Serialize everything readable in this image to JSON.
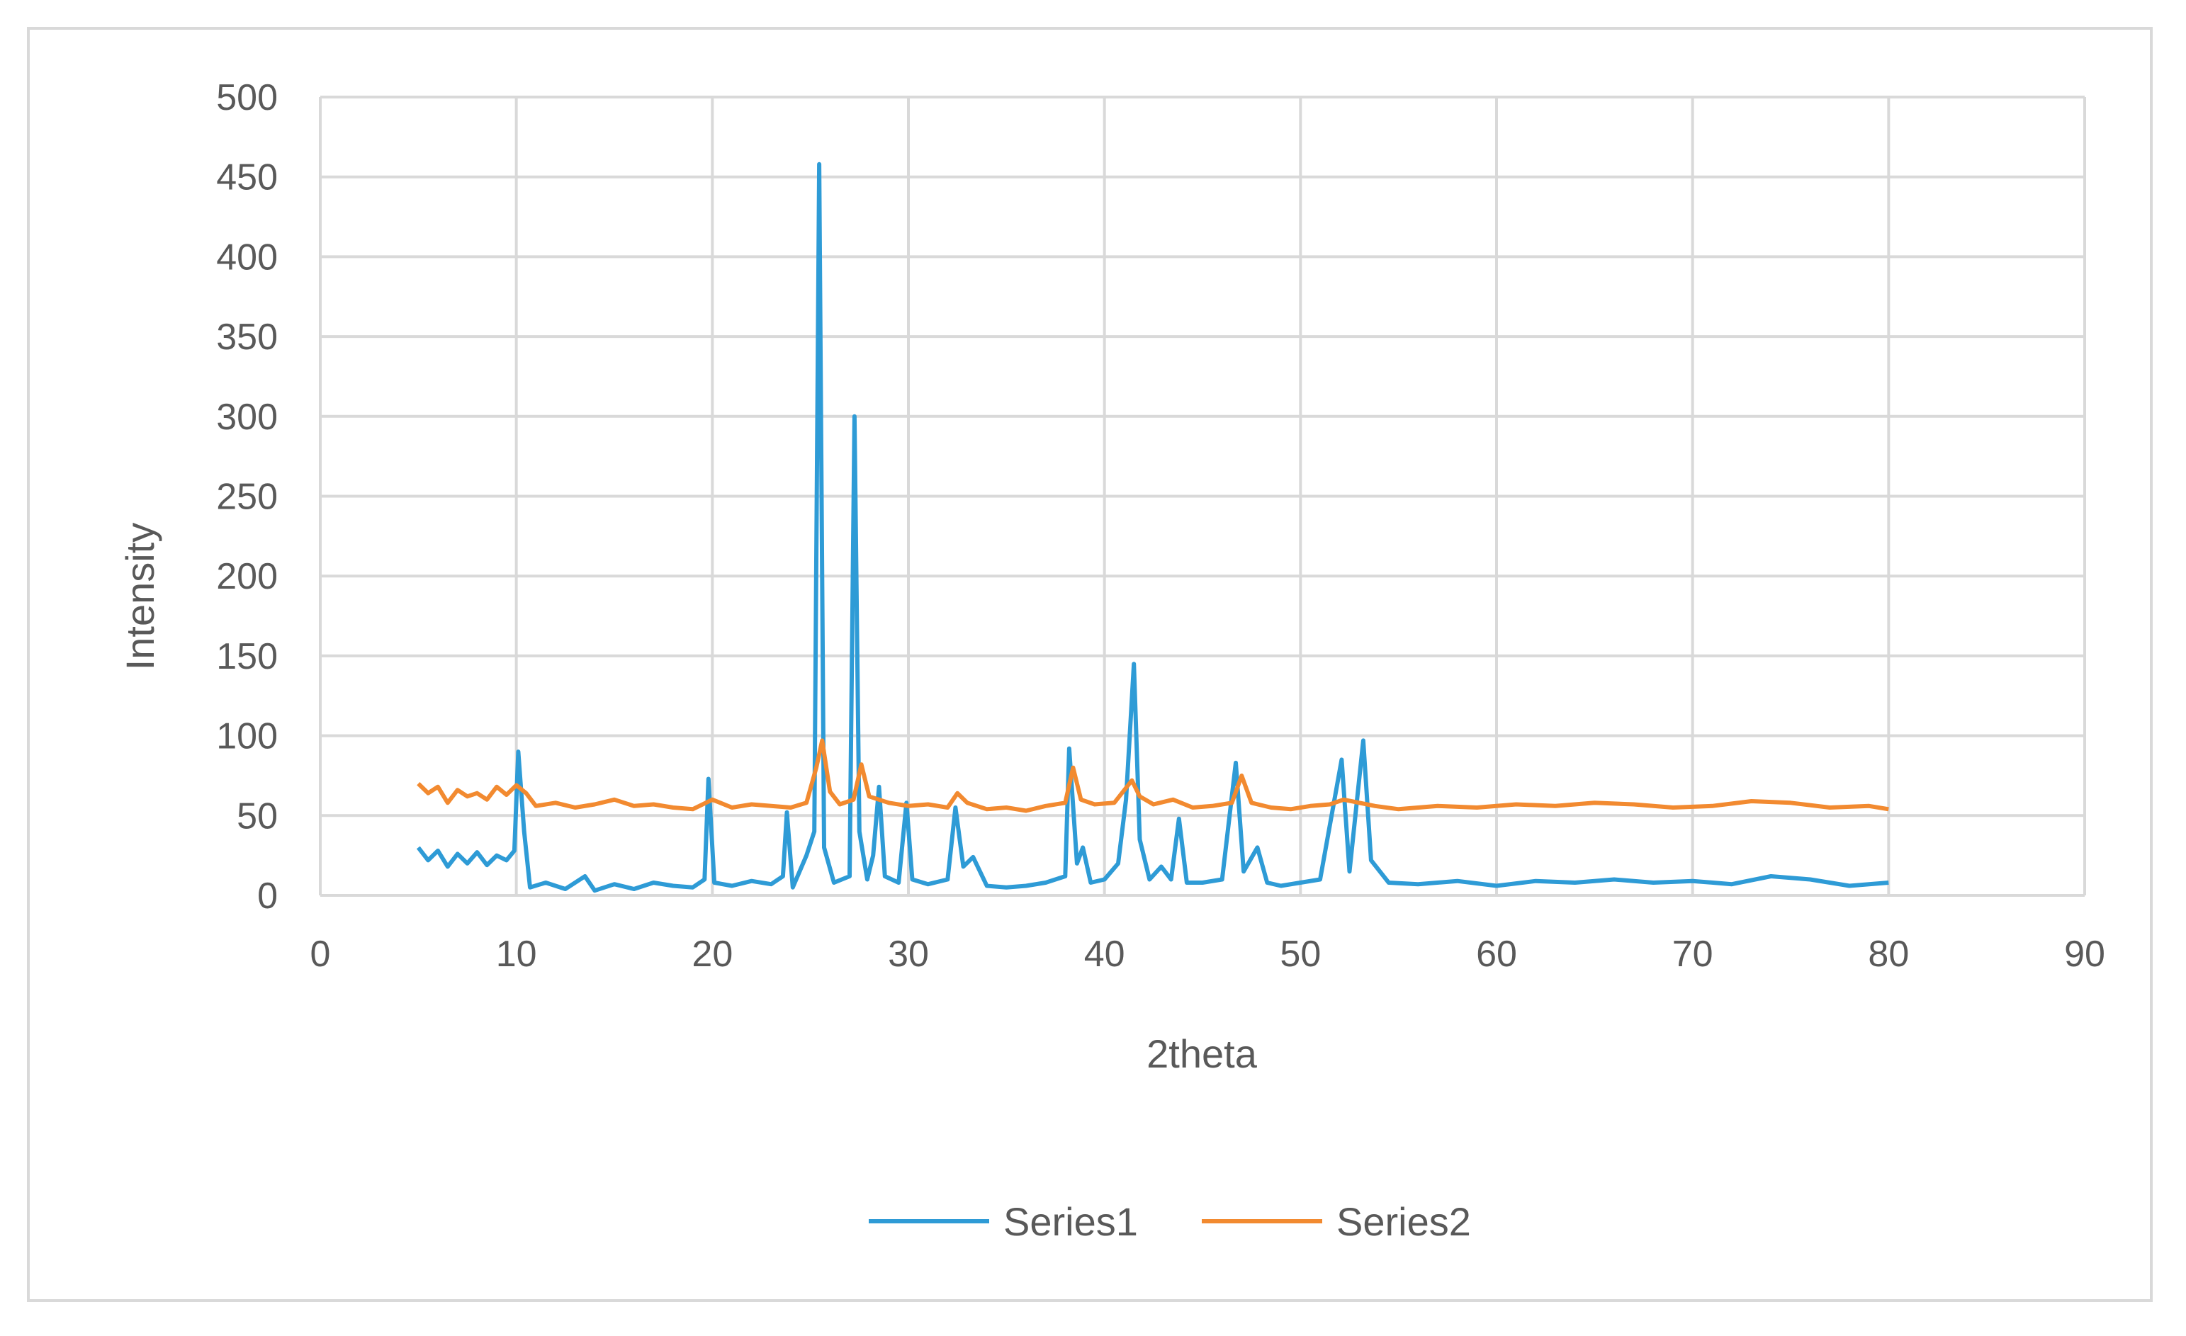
{
  "chart_data": {
    "type": "line",
    "title": "",
    "xlabel": "2theta",
    "ylabel": "Intensity",
    "xlim": [
      0,
      90
    ],
    "ylim": [
      0,
      500
    ],
    "x_ticks": [
      0,
      10,
      20,
      30,
      40,
      50,
      60,
      70,
      80,
      90
    ],
    "y_ticks": [
      0,
      50,
      100,
      150,
      200,
      250,
      300,
      350,
      400,
      450,
      500
    ],
    "grid": true,
    "legend_position": "bottom",
    "series": [
      {
        "name": "Series1",
        "color": "#2E9BD6",
        "points": [
          [
            5,
            30
          ],
          [
            5.5,
            22
          ],
          [
            6,
            28
          ],
          [
            6.5,
            18
          ],
          [
            7,
            26
          ],
          [
            7.5,
            20
          ],
          [
            8,
            27
          ],
          [
            8.5,
            19
          ],
          [
            9,
            25
          ],
          [
            9.5,
            22
          ],
          [
            9.9,
            28
          ],
          [
            10.1,
            90
          ],
          [
            10.4,
            40
          ],
          [
            10.7,
            5
          ],
          [
            11.5,
            8
          ],
          [
            12.5,
            4
          ],
          [
            13.5,
            12
          ],
          [
            14,
            3
          ],
          [
            15,
            7
          ],
          [
            16,
            4
          ],
          [
            17,
            8
          ],
          [
            18,
            6
          ],
          [
            19,
            5
          ],
          [
            19.6,
            10
          ],
          [
            19.8,
            73
          ],
          [
            20.1,
            8
          ],
          [
            21,
            6
          ],
          [
            22,
            9
          ],
          [
            23,
            7
          ],
          [
            23.6,
            12
          ],
          [
            23.8,
            52
          ],
          [
            24.1,
            5
          ],
          [
            24.8,
            25
          ],
          [
            25.2,
            40
          ],
          [
            25.45,
            458
          ],
          [
            25.7,
            30
          ],
          [
            26.2,
            8
          ],
          [
            27,
            12
          ],
          [
            27.25,
            300
          ],
          [
            27.5,
            40
          ],
          [
            27.9,
            10
          ],
          [
            28.2,
            25
          ],
          [
            28.5,
            68
          ],
          [
            28.8,
            12
          ],
          [
            29.5,
            8
          ],
          [
            29.9,
            58
          ],
          [
            30.2,
            10
          ],
          [
            31,
            7
          ],
          [
            32,
            10
          ],
          [
            32.4,
            55
          ],
          [
            32.8,
            18
          ],
          [
            33.3,
            24
          ],
          [
            34,
            6
          ],
          [
            35,
            5
          ],
          [
            36,
            6
          ],
          [
            37,
            8
          ],
          [
            38,
            12
          ],
          [
            38.2,
            92
          ],
          [
            38.6,
            20
          ],
          [
            38.9,
            30
          ],
          [
            39.3,
            8
          ],
          [
            40,
            10
          ],
          [
            40.7,
            20
          ],
          [
            41.1,
            60
          ],
          [
            41.5,
            145
          ],
          [
            41.8,
            35
          ],
          [
            42.3,
            10
          ],
          [
            42.9,
            18
          ],
          [
            43.4,
            10
          ],
          [
            43.8,
            48
          ],
          [
            44.2,
            8
          ],
          [
            45,
            8
          ],
          [
            46,
            10
          ],
          [
            46.7,
            83
          ],
          [
            47.1,
            15
          ],
          [
            47.8,
            30
          ],
          [
            48.3,
            8
          ],
          [
            49,
            6
          ],
          [
            50,
            8
          ],
          [
            51,
            10
          ],
          [
            52.1,
            85
          ],
          [
            52.5,
            15
          ],
          [
            53.2,
            97
          ],
          [
            53.6,
            22
          ],
          [
            54.5,
            8
          ],
          [
            56,
            7
          ],
          [
            58,
            9
          ],
          [
            60,
            6
          ],
          [
            62,
            9
          ],
          [
            64,
            8
          ],
          [
            66,
            10
          ],
          [
            68,
            8
          ],
          [
            70,
            9
          ],
          [
            72,
            7
          ],
          [
            74,
            12
          ],
          [
            76,
            10
          ],
          [
            78,
            6
          ],
          [
            80,
            8
          ]
        ]
      },
      {
        "name": "Series2",
        "color": "#F28A30",
        "points": [
          [
            5,
            70
          ],
          [
            5.5,
            64
          ],
          [
            6,
            68
          ],
          [
            6.5,
            58
          ],
          [
            7,
            66
          ],
          [
            7.5,
            62
          ],
          [
            8,
            64
          ],
          [
            8.5,
            60
          ],
          [
            9,
            68
          ],
          [
            9.5,
            63
          ],
          [
            10,
            69
          ],
          [
            10.5,
            64
          ],
          [
            11,
            56
          ],
          [
            12,
            58
          ],
          [
            13,
            55
          ],
          [
            14,
            57
          ],
          [
            15,
            60
          ],
          [
            16,
            56
          ],
          [
            17,
            57
          ],
          [
            18,
            55
          ],
          [
            19,
            54
          ],
          [
            20,
            60
          ],
          [
            21,
            55
          ],
          [
            22,
            57
          ],
          [
            23,
            56
          ],
          [
            24,
            55
          ],
          [
            24.8,
            58
          ],
          [
            25.3,
            80
          ],
          [
            25.6,
            97
          ],
          [
            26,
            65
          ],
          [
            26.5,
            57
          ],
          [
            27.2,
            60
          ],
          [
            27.6,
            82
          ],
          [
            28,
            62
          ],
          [
            29,
            58
          ],
          [
            30,
            56
          ],
          [
            31,
            57
          ],
          [
            32,
            55
          ],
          [
            32.5,
            64
          ],
          [
            33,
            58
          ],
          [
            34,
            54
          ],
          [
            35,
            55
          ],
          [
            36,
            53
          ],
          [
            37,
            56
          ],
          [
            38,
            58
          ],
          [
            38.4,
            80
          ],
          [
            38.8,
            60
          ],
          [
            39.5,
            57
          ],
          [
            40.5,
            58
          ],
          [
            41.4,
            72
          ],
          [
            41.8,
            62
          ],
          [
            42.5,
            57
          ],
          [
            43.5,
            60
          ],
          [
            44.5,
            55
          ],
          [
            45.5,
            56
          ],
          [
            46.5,
            58
          ],
          [
            47,
            75
          ],
          [
            47.5,
            58
          ],
          [
            48.5,
            55
          ],
          [
            49.5,
            54
          ],
          [
            50.5,
            56
          ],
          [
            51.5,
            57
          ],
          [
            52.2,
            60
          ],
          [
            53,
            58
          ],
          [
            53.8,
            56
          ],
          [
            55,
            54
          ],
          [
            57,
            56
          ],
          [
            59,
            55
          ],
          [
            61,
            57
          ],
          [
            63,
            56
          ],
          [
            65,
            58
          ],
          [
            67,
            57
          ],
          [
            69,
            55
          ],
          [
            71,
            56
          ],
          [
            73,
            59
          ],
          [
            75,
            58
          ],
          [
            77,
            55
          ],
          [
            79,
            56
          ],
          [
            80,
            54
          ]
        ]
      }
    ]
  }
}
